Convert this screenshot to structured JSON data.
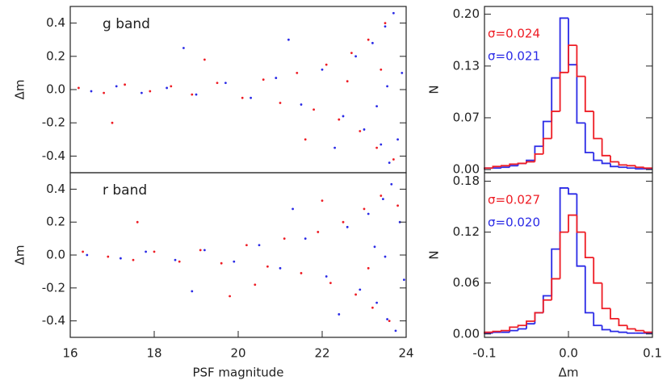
{
  "chart_data": [
    {
      "type": "scatter",
      "annotation": "g band",
      "ylabel": "Δm",
      "xlim": [
        16,
        24
      ],
      "ylim": [
        -0.5,
        0.5
      ],
      "yticks": [
        0.4,
        0.2,
        {
          "value": 0,
          "label": "0.0"
        },
        -0.2,
        -0.4
      ],
      "series": [
        {
          "color": "#ee1c24",
          "x": [
            16.2,
            16.8,
            17.3,
            17.9,
            18.4,
            18.9,
            19.5,
            20.1,
            20.6,
            21.0,
            21.4,
            21.8,
            22.1,
            22.4,
            22.7,
            22.9,
            23.1,
            23.3,
            23.5,
            23.7,
            19.2,
            21.6,
            22.6,
            23.4,
            17.0
          ],
          "values": [
            0.01,
            -0.02,
            0.03,
            -0.01,
            0.02,
            -0.03,
            0.04,
            -0.05,
            0.06,
            -0.08,
            0.1,
            -0.12,
            0.15,
            -0.18,
            0.22,
            -0.25,
            0.3,
            -0.35,
            0.4,
            -0.42,
            0.18,
            -0.3,
            0.05,
            0.12,
            -0.2
          ]
        },
        {
          "color": "#2a2ae6",
          "x": [
            16.5,
            17.1,
            17.7,
            18.3,
            19.0,
            19.7,
            20.3,
            20.9,
            21.5,
            22.0,
            22.5,
            22.8,
            23.0,
            23.2,
            23.4,
            23.5,
            23.6,
            23.7,
            23.8,
            23.9,
            18.7,
            21.2,
            22.3,
            23.3,
            23.55
          ],
          "values": [
            -0.01,
            0.02,
            -0.02,
            0.01,
            -0.03,
            0.04,
            -0.05,
            0.07,
            -0.09,
            0.12,
            -0.16,
            0.2,
            -0.24,
            0.28,
            -0.33,
            0.38,
            -0.44,
            0.46,
            -0.3,
            0.1,
            0.25,
            0.3,
            -0.35,
            -0.1,
            0.02
          ]
        }
      ]
    },
    {
      "type": "scatter",
      "annotation": "r band",
      "ylabel": "Δm",
      "xlabel": "PSF magnitude",
      "xlim": [
        16,
        24
      ],
      "ylim": [
        -0.5,
        0.5
      ],
      "xticks": [
        16,
        18,
        20,
        22,
        24
      ],
      "yticks": [
        0.4,
        0.2,
        {
          "value": 0,
          "label": "0.0"
        },
        -0.2,
        -0.4
      ],
      "series": [
        {
          "color": "#ee1c24",
          "x": [
            16.3,
            16.9,
            17.5,
            18.0,
            18.6,
            19.1,
            19.6,
            20.2,
            20.7,
            21.1,
            21.5,
            21.9,
            22.2,
            22.5,
            22.8,
            23.0,
            23.2,
            23.4,
            23.6,
            23.8,
            17.6,
            20.4,
            22.0,
            23.1,
            19.8
          ],
          "values": [
            0.02,
            -0.01,
            -0.03,
            0.02,
            -0.04,
            0.03,
            -0.05,
            0.06,
            -0.07,
            0.1,
            -0.11,
            0.14,
            -0.17,
            0.2,
            -0.24,
            0.28,
            -0.32,
            0.36,
            -0.4,
            0.3,
            0.2,
            -0.18,
            0.33,
            -0.08,
            -0.25
          ]
        },
        {
          "color": "#2a2ae6",
          "x": [
            16.4,
            17.2,
            17.8,
            18.5,
            19.2,
            19.9,
            20.5,
            21.0,
            21.6,
            22.1,
            22.6,
            22.9,
            23.1,
            23.3,
            23.45,
            23.55,
            23.65,
            23.75,
            23.85,
            23.95,
            18.9,
            21.3,
            22.4,
            23.25,
            23.5
          ],
          "values": [
            0.0,
            -0.02,
            0.02,
            -0.03,
            0.03,
            -0.04,
            0.06,
            -0.08,
            0.1,
            -0.13,
            0.17,
            -0.21,
            0.25,
            -0.29,
            0.34,
            -0.39,
            0.43,
            -0.46,
            0.2,
            -0.15,
            -0.22,
            0.28,
            -0.36,
            0.05,
            -0.01
          ]
        }
      ]
    },
    {
      "type": "histogram",
      "ylabel": "N",
      "xlim": [
        -0.1,
        0.1
      ],
      "ylim": [
        -0.004,
        0.21
      ],
      "yticks": [
        {
          "value": 0.2,
          "label": "0.20"
        },
        {
          "value": 0.1333,
          "label": "0.13"
        },
        {
          "value": 0.0667,
          "label": "0.07"
        },
        {
          "value": 0,
          "label": "0.00"
        }
      ],
      "annotations": [
        {
          "text": "σ=0.024",
          "color": "#ee1c24"
        },
        {
          "text": "σ=0.021",
          "color": "#2a2ae6"
        }
      ],
      "bins": [
        -0.1,
        -0.09,
        -0.08,
        -0.07,
        -0.06,
        -0.05,
        -0.04,
        -0.03,
        -0.02,
        -0.01,
        0,
        0.01,
        0.02,
        0.03,
        0.04,
        0.05,
        0.06,
        0.07,
        0.08,
        0.09,
        0.1
      ],
      "series": [
        {
          "color": "#2a2ae6",
          "values": [
            0.002,
            0.002,
            0.003,
            0.005,
            0.008,
            0.012,
            0.03,
            0.062,
            0.118,
            0.195,
            0.135,
            0.06,
            0.022,
            0.012,
            0.008,
            0.004,
            0.003,
            0.002,
            0.001,
            0.001
          ]
        },
        {
          "color": "#ee1c24",
          "values": [
            0.002,
            0.004,
            0.005,
            0.007,
            0.008,
            0.01,
            0.02,
            0.04,
            0.075,
            0.125,
            0.16,
            0.12,
            0.075,
            0.04,
            0.018,
            0.01,
            0.006,
            0.005,
            0.003,
            0.002
          ]
        }
      ]
    },
    {
      "type": "histogram",
      "ylabel": "N",
      "xlabel": "Δm",
      "xlim": [
        -0.1,
        0.1
      ],
      "ylim": [
        -0.004,
        0.19
      ],
      "xticks": [
        -0.1,
        {
          "value": 0,
          "label": "0.0"
        },
        0.1
      ],
      "yticks": [
        {
          "value": 0.18,
          "label": "0.18"
        },
        {
          "value": 0.12,
          "label": "0.12"
        },
        {
          "value": 0.06,
          "label": "0.06"
        },
        {
          "value": 0,
          "label": "0.00"
        }
      ],
      "annotations": [
        {
          "text": "σ=0.027",
          "color": "#ee1c24"
        },
        {
          "text": "σ=0.020",
          "color": "#2a2ae6"
        }
      ],
      "bins": [
        -0.1,
        -0.09,
        -0.08,
        -0.07,
        -0.06,
        -0.05,
        -0.04,
        -0.03,
        -0.02,
        -0.01,
        0,
        0.01,
        0.02,
        0.03,
        0.04,
        0.05,
        0.06,
        0.07,
        0.08,
        0.09,
        0.1
      ],
      "series": [
        {
          "color": "#2a2ae6",
          "values": [
            0.001,
            0.002,
            0.002,
            0.004,
            0.006,
            0.012,
            0.025,
            0.045,
            0.1,
            0.172,
            0.165,
            0.08,
            0.025,
            0.01,
            0.005,
            0.003,
            0.002,
            0.001,
            0.001,
            0.001
          ]
        },
        {
          "color": "#ee1c24",
          "values": [
            0.002,
            0.003,
            0.004,
            0.008,
            0.01,
            0.015,
            0.025,
            0.04,
            0.065,
            0.12,
            0.14,
            0.12,
            0.09,
            0.06,
            0.03,
            0.018,
            0.01,
            0.006,
            0.004,
            0.002
          ]
        }
      ]
    }
  ]
}
